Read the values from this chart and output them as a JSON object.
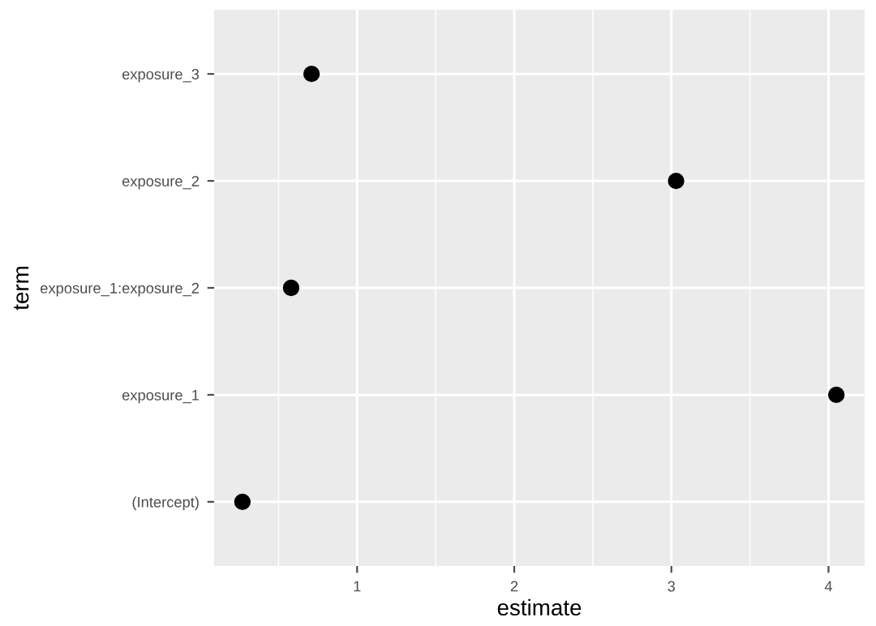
{
  "chart_data": {
    "type": "scatter",
    "orientation": "horizontal",
    "xlabel": "estimate",
    "ylabel": "term",
    "categories": [
      "exposure_3",
      "exposure_2",
      "exposure_1:exposure_2",
      "exposure_1",
      "(Intercept)"
    ],
    "values": [
      0.71,
      3.03,
      0.58,
      4.05,
      0.27
    ],
    "color": "#000000",
    "marker": "circle",
    "xlim": [
      0.09,
      4.23
    ],
    "xticks": [
      1,
      2,
      3,
      4
    ],
    "grid": true
  }
}
